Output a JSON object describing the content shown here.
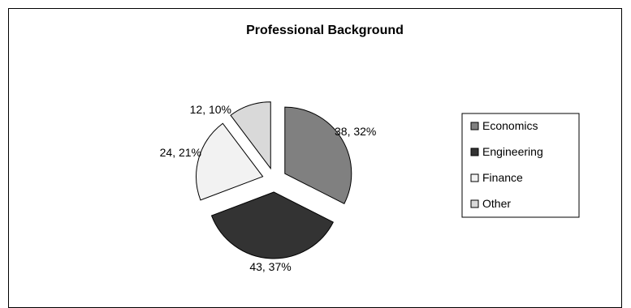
{
  "chart_data": {
    "type": "pie",
    "title": "Professional Background",
    "categories": [
      "Economics",
      "Engineering",
      "Finance",
      "Other"
    ],
    "values": [
      38,
      43,
      24,
      12
    ],
    "percentages": [
      32,
      37,
      21,
      10
    ],
    "data_labels": [
      "38, 32%",
      "43, 37%",
      "24, 21%",
      "12, 10%"
    ],
    "colors": [
      "#808080",
      "#333333",
      "#f2f2f2",
      "#d9d9d9"
    ],
    "exploded": true,
    "legend": {
      "position": "right",
      "entries": [
        "Economics",
        "Engineering",
        "Finance",
        "Other"
      ]
    }
  }
}
